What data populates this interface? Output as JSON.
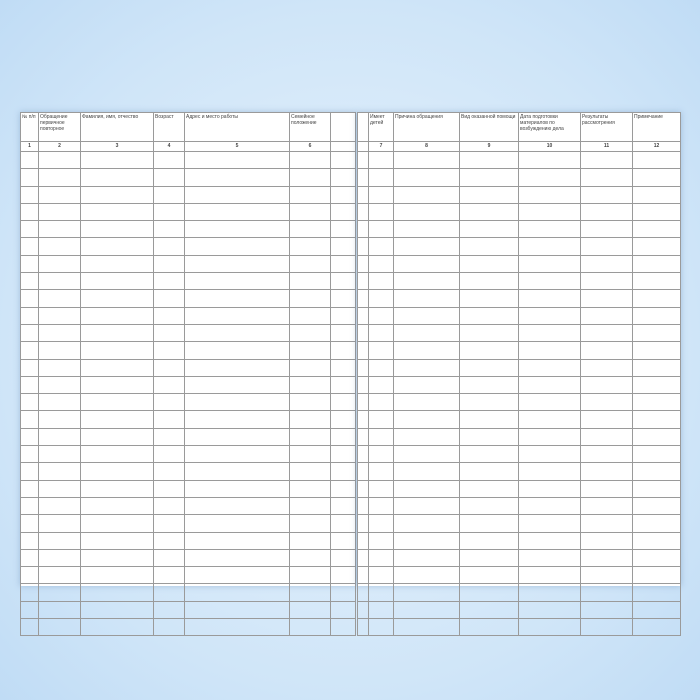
{
  "left_page": {
    "headers": [
      "№ п/п",
      "Обращение первичное повторное",
      "Фамилия, имя, отчество",
      "Возраст",
      "Адрес и место работы",
      "Семейное положение"
    ],
    "numbers": [
      "1",
      "2",
      "3",
      "4",
      "5",
      "6"
    ]
  },
  "right_page": {
    "headers": [
      "Имеет детей",
      "Причина обращения",
      "Вид оказанной помощи",
      "Дата подготовки материалов по возбуждению дела",
      "Результаты рассмотрения",
      "Примечание"
    ],
    "numbers": [
      "7",
      "8",
      "9",
      "10",
      "11",
      "12"
    ]
  }
}
